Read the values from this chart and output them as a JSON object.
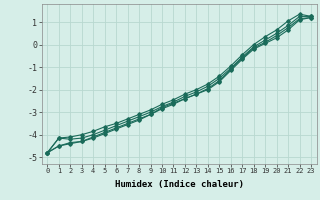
{
  "xlabel": "Humidex (Indice chaleur)",
  "ylabel": "",
  "background_color": "#d6eee8",
  "grid_color": "#b8d8d0",
  "line_color": "#1a6b5a",
  "x_values": [
    0,
    1,
    2,
    3,
    4,
    5,
    6,
    7,
    8,
    9,
    10,
    11,
    12,
    13,
    14,
    15,
    16,
    17,
    18,
    19,
    20,
    21,
    22,
    23
  ],
  "line1": [
    -4.8,
    -4.15,
    -4.1,
    -4.0,
    -3.85,
    -3.65,
    -3.5,
    -3.3,
    -3.1,
    -2.9,
    -2.65,
    -2.45,
    -2.2,
    -2.0,
    -1.75,
    -1.4,
    -0.95,
    -0.45,
    0.0,
    0.35,
    0.65,
    1.05,
    1.35,
    1.25
  ],
  "line2": [
    -4.8,
    -4.15,
    -4.2,
    -4.15,
    -4.0,
    -3.8,
    -3.6,
    -3.4,
    -3.2,
    -3.0,
    -2.75,
    -2.55,
    -2.3,
    -2.1,
    -1.85,
    -1.5,
    -1.05,
    -0.55,
    -0.1,
    0.2,
    0.5,
    0.85,
    1.25,
    1.25
  ],
  "line3": [
    -4.8,
    -4.5,
    -4.35,
    -4.3,
    -4.1,
    -3.9,
    -3.7,
    -3.5,
    -3.3,
    -3.1,
    -2.8,
    -2.6,
    -2.4,
    -2.2,
    -1.95,
    -1.6,
    -1.1,
    -0.6,
    -0.15,
    0.1,
    0.4,
    0.75,
    1.15,
    1.2
  ],
  "line4": [
    -4.8,
    -4.5,
    -4.4,
    -4.3,
    -4.15,
    -3.95,
    -3.75,
    -3.55,
    -3.35,
    -3.1,
    -2.85,
    -2.65,
    -2.4,
    -2.2,
    -2.0,
    -1.65,
    -1.15,
    -0.65,
    -0.2,
    0.05,
    0.3,
    0.65,
    1.1,
    1.2
  ],
  "xlim": [
    -0.5,
    23.5
  ],
  "ylim": [
    -5.3,
    1.8
  ],
  "yticks": [
    -5,
    -4,
    -3,
    -2,
    -1,
    0,
    1
  ],
  "xticks": [
    0,
    1,
    2,
    3,
    4,
    5,
    6,
    7,
    8,
    9,
    10,
    11,
    12,
    13,
    14,
    15,
    16,
    17,
    18,
    19,
    20,
    21,
    22,
    23
  ]
}
